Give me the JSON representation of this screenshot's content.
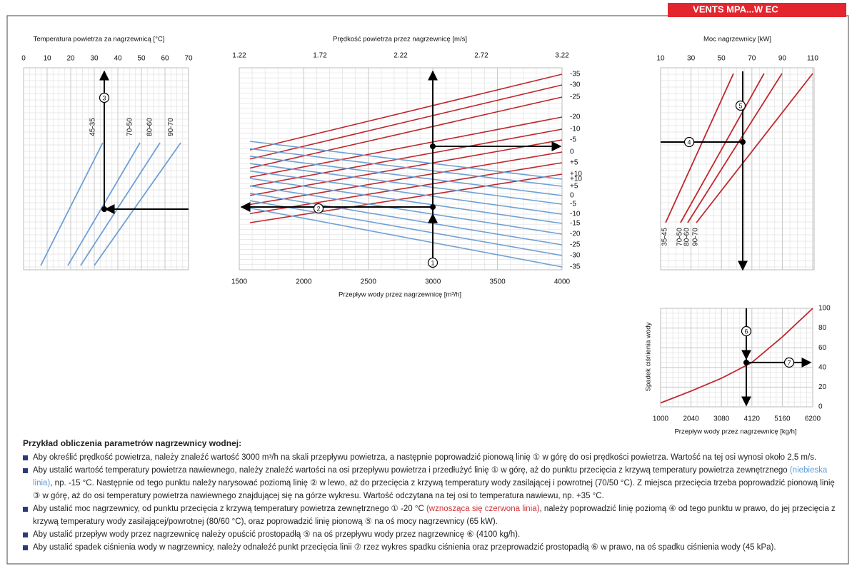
{
  "header": {
    "badge": "VENTS MPA...W EC"
  },
  "chart_data": [
    {
      "type": "line",
      "title": "Temperatura powietrza za nagrzewnicą [°C]",
      "xlim": [
        0,
        70
      ],
      "xticks": [
        0,
        10,
        20,
        30,
        40,
        50,
        60,
        70
      ],
      "grid": true,
      "series": [
        {
          "name": "45-35",
          "color": "#6fa0d4",
          "x": [
            7.3,
            33.6
          ]
        },
        {
          "name": "70-50",
          "color": "#6fa0d4",
          "x": [
            18.8,
            49.4
          ]
        },
        {
          "name": "80-60",
          "color": "#6fa0d4",
          "x": [
            24.2,
            57.9
          ]
        },
        {
          "name": "90-70",
          "color": "#6fa0d4",
          "x": [
            30,
            66.7
          ]
        }
      ],
      "annotations": [
        "3"
      ]
    },
    {
      "type": "nomogram",
      "title": "Prędkość powietrza przez nagrzewnicę  [m/s]",
      "xlabel": "Przepływ wody przez nagrzewnicę [m³/h]",
      "xlim": [
        1500,
        4000
      ],
      "xticks": [
        1500,
        2000,
        2500,
        3000,
        3500,
        4000
      ],
      "x2lim": [
        1.22,
        3.22
      ],
      "x2ticks": [
        1.22,
        1.72,
        2.22,
        2.72,
        3.22
      ],
      "grid": true,
      "rising_curves": {
        "color": "#c0282d",
        "labels": [
          "-35",
          "-30",
          "-25",
          "-20",
          "-10",
          "-5",
          "0",
          "+5",
          "+10"
        ]
      },
      "falling_curves": {
        "color": "#6fa0d4",
        "labels": [
          "+10",
          "+5",
          "0",
          "-5",
          "-10",
          "-15",
          "-20",
          "-25",
          "-30",
          "-35"
        ]
      },
      "annotations": [
        "1",
        "2"
      ]
    },
    {
      "type": "line",
      "title": "Moc nagrzewnicy [kW]",
      "xlim": [
        10,
        110
      ],
      "xticks": [
        10,
        30,
        50,
        70,
        90,
        110
      ],
      "grid": true,
      "series": [
        {
          "name": "35-45",
          "color": "#c0282d",
          "x": [
            13.3,
            57.9
          ]
        },
        {
          "name": "70-50",
          "color": "#c0282d",
          "x": [
            23.1,
            78
          ]
        },
        {
          "name": "80-60",
          "color": "#c0282d",
          "x": [
            27.8,
            89.8
          ]
        },
        {
          "name": "90-70",
          "color": "#c0282d",
          "x": [
            33.5,
            110
          ]
        }
      ],
      "annotations": [
        "4",
        "5"
      ]
    },
    {
      "type": "curve",
      "xlabel": "Przepływ wody przez nagrzewnicę [kg/h]",
      "ylabel": "Spadek ciśnienia wody",
      "xlim": [
        1000,
        6200
      ],
      "xticks": [
        1000,
        2040,
        3080,
        4120,
        5160,
        6200
      ],
      "ylim": [
        0,
        100
      ],
      "yticks": [
        0,
        20,
        40,
        60,
        80,
        100
      ],
      "grid": true,
      "x": [
        1000,
        2040,
        3080,
        4120,
        5160,
        6200
      ],
      "values": [
        4,
        16,
        29,
        45,
        71,
        100
      ],
      "color": "#c0282d",
      "annotations": [
        "6",
        "7"
      ]
    }
  ],
  "instructions": {
    "title": "Przykład obliczenia parametrów nagrzewnicy wodnej:",
    "items": [
      [
        {
          "text": "Aby określić prędkość powietrza, należy znaleźć wartość 3000 m³/h na skali przepływu powietrza, a następnie poprowadzić pionową linię ① w górę do osi prędkości powietrza. Wartość na tej osi wynosi około 2,5 m/s."
        }
      ],
      [
        {
          "text": "Aby ustalić wartość temperatury powietrza nawiewnego, należy znaleźć wartości na osi przepływu powietrza i przedłużyć linię ① w górę, aż do punktu przecięcia z krzywą temperatury powietrza zewnętrznego "
        },
        {
          "text": "(niebieska linia)",
          "color": "#5b9bd5"
        },
        {
          "text": ", np. -15 °C. Następnie od tego punktu należy narysować poziomą linię ② w lewo, aż do przecięcia z krzywą temperatury wody zasilającej i powrotnej (70/50 °C). Z miejsca przecięcia trzeba poprowadzić pionową linię ③ w górę, aż do osi temperatury powietrza nawiewnego znajdującej się na górze wykresu. Wartość odczytana na tej osi to temperatura nawiewu, np. +35 °C."
        }
      ],
      [
        {
          "text": "Aby ustalić moc nagrzewnicy, od punktu przecięcia z krzywą temperatury powietrza zewnętrznego ① -20 °C "
        },
        {
          "text": "(wznosząca się czerwona linia)",
          "color": "#d0343a"
        },
        {
          "text": ", należy poprowadzić linię poziomą ④ od tego punktu w prawo, do jej przecięcia z krzywą temperatury wody zasilającej/powrotnej (80/60 °C), oraz poprowadzić linię pionową ⑤ na oś mocy nagrzewnicy (65 kW)."
        }
      ],
      [
        {
          "text": "Aby ustalić przepływ wody przez nagrzewnicę należy opuścić prostopadłą ⑤ na oś przepływu wody przez nagrzewnicę ⑥ (4100 kg/h)."
        }
      ],
      [
        {
          "text": "Aby ustalić spadek ciśnienia wody w nagrzewnicy, należy odnaleźć punkt przecięcia linii ⑦ rzez wykres spadku ciśnienia oraz przeprowadzić prostopadłą ⑥ w prawo, na oś spadku ciśnienia wody (45 kPa)."
        }
      ]
    ]
  }
}
